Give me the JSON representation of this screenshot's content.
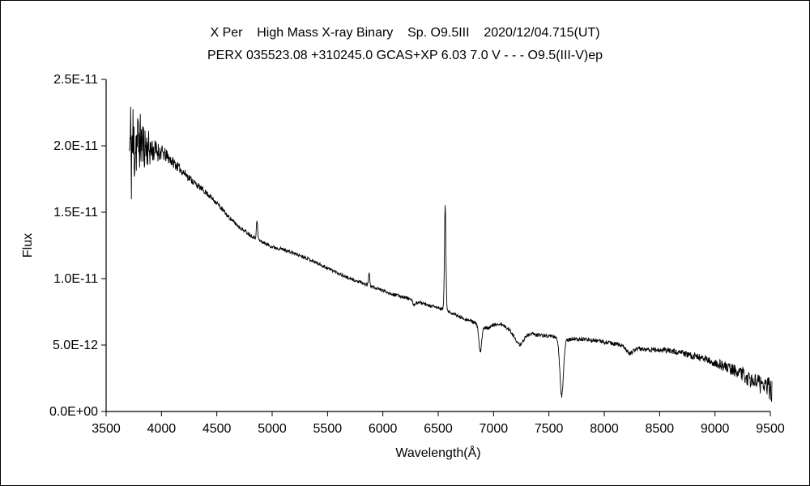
{
  "figure": {
    "background": "#ffffff",
    "border_color": "#000000"
  },
  "chart_data": {
    "type": "line",
    "title": "X Per    High Mass X-ray Binary    Sp. O9.5III    2020/12/04.715(UT)",
    "subtitle": "PERX 035523.08 +310245.0 GCAS+XP 6.03 7.0 V - - - O9.5(III-V)ep",
    "xlabel": "Wavelength(Å)",
    "ylabel": "Flux",
    "xlim": [
      3500,
      9500
    ],
    "ylim": [
      0,
      2.5e-11
    ],
    "grid": false,
    "legend": null,
    "line_color": "#000000",
    "x_ticks": [
      {
        "value": 3500,
        "label": "3500"
      },
      {
        "value": 4000,
        "label": "4000"
      },
      {
        "value": 4500,
        "label": "4500"
      },
      {
        "value": 5000,
        "label": "5000"
      },
      {
        "value": 5500,
        "label": "5500"
      },
      {
        "value": 6000,
        "label": "6000"
      },
      {
        "value": 6500,
        "label": "6500"
      },
      {
        "value": 7000,
        "label": "7000"
      },
      {
        "value": 7500,
        "label": "7500"
      },
      {
        "value": 8000,
        "label": "8000"
      },
      {
        "value": 8500,
        "label": "8500"
      },
      {
        "value": 9000,
        "label": "9000"
      },
      {
        "value": 9500,
        "label": "9500"
      }
    ],
    "y_ticks": [
      {
        "value": 0,
        "label": "0.0E+00"
      },
      {
        "value": 5e-12,
        "label": "5.0E-12"
      },
      {
        "value": 1e-11,
        "label": "1.0E-11"
      },
      {
        "value": 1.5e-11,
        "label": "1.5E-11"
      },
      {
        "value": 2e-11,
        "label": "2.0E-11"
      },
      {
        "value": 2.5e-11,
        "label": "2.5E-11"
      }
    ],
    "wavelength_range": [
      3710,
      9515
    ],
    "sample_step": 3,
    "random_seed": 11,
    "continuum": [
      [
        3710,
        1.95e-11
      ],
      [
        3760,
        2.02e-11
      ],
      [
        3800,
        2.04e-11
      ],
      [
        3850,
        2e-11
      ],
      [
        3900,
        1.97e-11
      ],
      [
        3950,
        1.96e-11
      ],
      [
        4000,
        1.95e-11
      ],
      [
        4050,
        1.92e-11
      ],
      [
        4100,
        1.88e-11
      ],
      [
        4200,
        1.8e-11
      ],
      [
        4300,
        1.72e-11
      ],
      [
        4400,
        1.65e-11
      ],
      [
        4500,
        1.57e-11
      ],
      [
        4600,
        1.47e-11
      ],
      [
        4700,
        1.39e-11
      ],
      [
        4800,
        1.33e-11
      ],
      [
        4900,
        1.28e-11
      ],
      [
        5000,
        1.24e-11
      ],
      [
        5100,
        1.22e-11
      ],
      [
        5200,
        1.19e-11
      ],
      [
        5300,
        1.16e-11
      ],
      [
        5400,
        1.12e-11
      ],
      [
        5500,
        1.08e-11
      ],
      [
        5600,
        1.04e-11
      ],
      [
        5700,
        1e-11
      ],
      [
        5800,
        9.7e-12
      ],
      [
        5900,
        9.4e-12
      ],
      [
        6000,
        9.1e-12
      ],
      [
        6100,
        8.8e-12
      ],
      [
        6200,
        8.6e-12
      ],
      [
        6300,
        8.3e-12
      ],
      [
        6400,
        8e-12
      ],
      [
        6500,
        7.8e-12
      ],
      [
        6600,
        7.5e-12
      ],
      [
        6700,
        7.1e-12
      ],
      [
        6800,
        6.8e-12
      ],
      [
        6900,
        6.4e-12
      ],
      [
        6950,
        6.3e-12
      ],
      [
        7000,
        6.5e-12
      ],
      [
        7060,
        6.6e-12
      ],
      [
        7120,
        6.3e-12
      ],
      [
        7200,
        6.1e-12
      ],
      [
        7300,
        5.9e-12
      ],
      [
        7400,
        5.75e-12
      ],
      [
        7500,
        5.7e-12
      ],
      [
        7560,
        5.6e-12
      ],
      [
        7660,
        5.4e-12
      ],
      [
        7750,
        5.45e-12
      ],
      [
        7850,
        5.4e-12
      ],
      [
        7950,
        5.3e-12
      ],
      [
        8050,
        5.15e-12
      ],
      [
        8150,
        5e-12
      ],
      [
        8250,
        4.8e-12
      ],
      [
        8350,
        4.7e-12
      ],
      [
        8450,
        4.65e-12
      ],
      [
        8550,
        4.6e-12
      ],
      [
        8650,
        4.5e-12
      ],
      [
        8750,
        4.3e-12
      ],
      [
        8850,
        4.1e-12
      ],
      [
        8950,
        3.8e-12
      ],
      [
        9050,
        3.5e-12
      ],
      [
        9150,
        3.2e-12
      ],
      [
        9250,
        2.9e-12
      ],
      [
        9350,
        2.6e-12
      ],
      [
        9450,
        2.1e-12
      ],
      [
        9515,
        1.6e-12
      ]
    ],
    "features": [
      {
        "name": "H-beta emission",
        "center": 4863,
        "sigma": 6,
        "amplitude": 1.3e-12
      },
      {
        "name": "He I 5876 emission",
        "center": 5876,
        "sigma": 6,
        "amplitude": 9e-13
      },
      {
        "name": "telluric O2 6280 absorption",
        "center": 6285,
        "sigma": 14,
        "amplitude": -3.5e-13
      },
      {
        "name": "H-alpha emission",
        "center": 6563,
        "sigma": 6.5,
        "amplitude": 8e-12
      },
      {
        "name": "telluric O2 B-band absorption",
        "center": 6880,
        "sigma": 13,
        "amplitude": -2e-12
      },
      {
        "name": "telluric H2O 7230 absorption",
        "center": 7230,
        "sigma": 40,
        "amplitude": -1e-12
      },
      {
        "name": "telluric O2 A-band absorption",
        "center": 7615,
        "sigma": 16,
        "amplitude": -4.3e-12
      },
      {
        "name": "telluric H2O 8230 absorption",
        "center": 8230,
        "sigma": 30,
        "amplitude": -4.5e-13
      },
      {
        "name": "telluric H2O 9350 absorption",
        "center": 9350,
        "sigma": 60,
        "amplitude": -4e-13
      }
    ],
    "noise_profile": [
      [
        3710,
        5e-12
      ],
      [
        3745,
        4e-12
      ],
      [
        3780,
        2.6e-12
      ],
      [
        3820,
        2e-12
      ],
      [
        3870,
        1.5e-12
      ],
      [
        3920,
        1e-12
      ],
      [
        3970,
        7.5e-13
      ],
      [
        4020,
        5.5e-13
      ],
      [
        4120,
        3.8e-13
      ],
      [
        4250,
        2.8e-13
      ],
      [
        4400,
        2e-13
      ],
      [
        4700,
        1.5e-13
      ],
      [
        5000,
        1.3e-13
      ],
      [
        6000,
        1.2e-13
      ],
      [
        7000,
        1.3e-13
      ],
      [
        8000,
        1.5e-13
      ],
      [
        8600,
        2e-13
      ],
      [
        8900,
        3e-13
      ],
      [
        9100,
        4.2e-13
      ],
      [
        9300,
        6e-13
      ],
      [
        9450,
        8e-13
      ],
      [
        9515,
        9.5e-13
      ]
    ]
  }
}
